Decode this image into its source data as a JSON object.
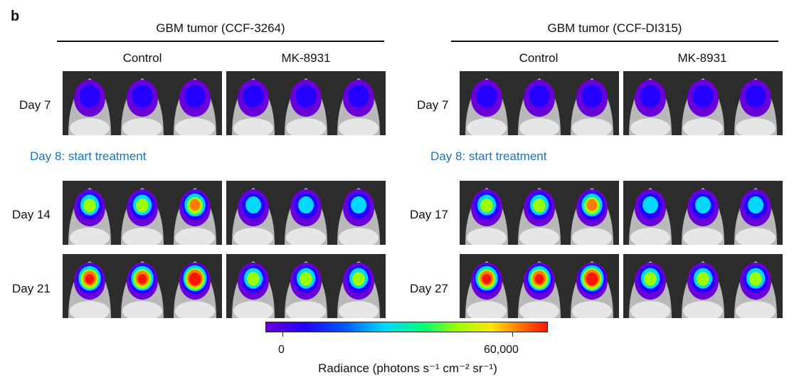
{
  "panel_letter": "b",
  "groups": [
    {
      "title": "GBM tumor (CCF-3264)",
      "columns": [
        "Control",
        "MK-8931"
      ],
      "days": [
        "Day 7",
        "Day 14",
        "Day 21"
      ],
      "treatment_label": "Day 8: start treatment"
    },
    {
      "title": "GBM tumor (CCF-DI315)",
      "columns": [
        "Control",
        "MK-8931"
      ],
      "days": [
        "Day 7",
        "Day 17",
        "Day 27"
      ],
      "treatment_label": "Day 8: start treatment"
    }
  ],
  "colorbar": {
    "min_label": "0",
    "max_label": "60,000",
    "title": "Radiance (photons s⁻¹ cm⁻² sr⁻¹)",
    "colors": [
      "#6a00d8",
      "#2400ff",
      "#0058ff",
      "#00d8ff",
      "#00ff78",
      "#9cff00",
      "#ffe600",
      "#ff7a00",
      "#ff1400"
    ]
  }
}
